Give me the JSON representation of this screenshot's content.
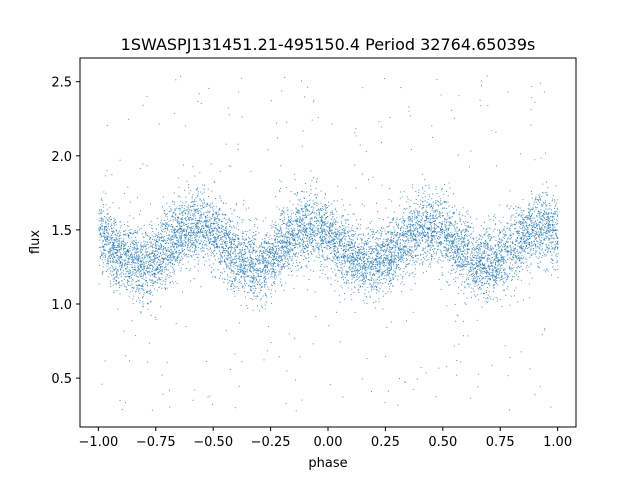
{
  "chart_data": {
    "type": "scatter",
    "title": "1SWASPJ131451.21-495150.4 Period 32764.65039s",
    "xlabel": "phase",
    "ylabel": "flux",
    "xlim": [
      -1.08,
      1.08
    ],
    "ylim": [
      0.17,
      2.66
    ],
    "x_ticks": [
      -1.0,
      -0.75,
      -0.5,
      -0.25,
      0.0,
      0.25,
      0.5,
      0.75,
      1.0
    ],
    "x_tick_labels": [
      "−1.00",
      "−0.75",
      "−0.50",
      "−0.25",
      "0.00",
      "0.25",
      "0.50",
      "0.75",
      "1.00"
    ],
    "y_ticks": [
      0.5,
      1.0,
      1.5,
      2.0,
      2.5
    ],
    "y_tick_labels": [
      "0.5",
      "1.0",
      "1.5",
      "2.0",
      "2.5"
    ],
    "grid": false,
    "point_color": "#1f77b4",
    "model": {
      "description_of_trend": "phase-folded light curve, two cycles per unit phase",
      "phase_minima": [
        -0.82,
        -0.32,
        0.18,
        0.68
      ],
      "phase_maxima": [
        -0.57,
        -0.07,
        0.43,
        0.93
      ],
      "flux_at_minima": 1.27,
      "flux_at_maxima": 1.52,
      "core_scatter": 0.12,
      "outlier_flux_range": [
        0.28,
        2.55
      ]
    }
  }
}
